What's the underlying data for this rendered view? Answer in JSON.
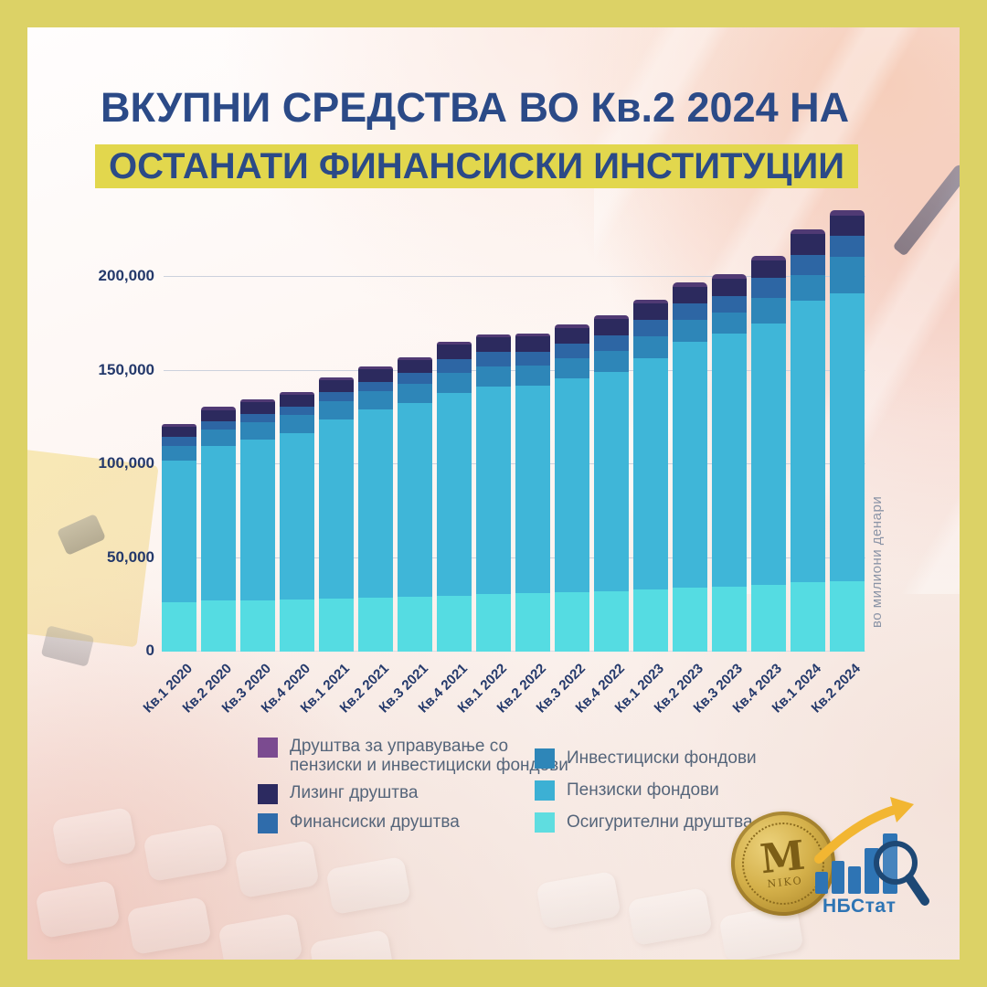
{
  "title": {
    "line1": "ВКУПНИ СРЕДСТВА ВО Кв.2 2024 НА",
    "line2": "ОСТАНАТИ ФИНАНСИСКИ ИНСТИТУЦИИ"
  },
  "axis": {
    "unit_label": "во милиони денари",
    "y_ticks": [
      {
        "label": "0",
        "value": 0
      },
      {
        "label": "50,000",
        "value": 50000
      },
      {
        "label": "100,000",
        "value": 100000
      },
      {
        "label": "150,000",
        "value": 150000
      },
      {
        "label": "200,000",
        "value": 200000
      }
    ]
  },
  "chart_data": {
    "type": "bar",
    "stacked": true,
    "title": "Вкупни средства во Кв.2 2024 на останати финансиски институции",
    "ylabel": "во милиони денари",
    "ylim": [
      0,
      240000
    ],
    "grid": true,
    "legend_position": "bottom",
    "categories": [
      "Кв.1 2020",
      "Кв.2 2020",
      "Кв.3 2020",
      "Кв.4 2020",
      "Кв.1 2021",
      "Кв.2 2021",
      "Кв.3 2021",
      "Кв.4 2021",
      "Кв.1 2022",
      "Кв.2 2022",
      "Кв.3 2022",
      "Кв.4 2022",
      "Кв.1 2023",
      "Кв.2 2023",
      "Кв.3 2023",
      "Кв.4 2023",
      "Кв.1 2024",
      "Кв.2 2024"
    ],
    "series": [
      {
        "name": "Осигурителни друштва",
        "color": "#55dce2",
        "legend_color": "#5fdde0",
        "values": [
          26200,
          27200,
          27500,
          28000,
          28500,
          29000,
          29500,
          30000,
          30500,
          31000,
          31500,
          32000,
          33000,
          34000,
          34500,
          35500,
          37000,
          37500
        ]
      },
      {
        "name": "Пензиски фондови",
        "color": "#3fb6d8",
        "legend_color": "#3cb0d4",
        "values": [
          75700,
          82500,
          85600,
          88500,
          95300,
          100100,
          103000,
          108300,
          110800,
          111200,
          114600,
          117500,
          123800,
          131500,
          135400,
          139600,
          150200,
          153900
        ]
      },
      {
        "name": "Инвестициски фондови",
        "color": "#2e86b8",
        "legend_color": "#2e86b8",
        "values": [
          7800,
          8700,
          9200,
          9700,
          9700,
          9700,
          10200,
          10700,
          10700,
          10700,
          10700,
          11200,
          11700,
          11700,
          11200,
          13700,
          13700,
          19400
        ]
      },
      {
        "name": "Финансиски друштва",
        "color": "#2d66a4",
        "legend_color": "#2f6cab",
        "values": [
          4900,
          4400,
          4400,
          4400,
          4900,
          5300,
          6300,
          7300,
          7800,
          7300,
          7800,
          8300,
          8700,
          8700,
          8700,
          10800,
          10800,
          11400
        ]
      },
      {
        "name": "Лизинг друштва",
        "color": "#2c2a5e",
        "legend_color": "#2c2a60",
        "values": [
          5300,
          5800,
          6300,
          6300,
          6500,
          6800,
          6800,
          7800,
          7800,
          8300,
          8300,
          8700,
          8700,
          8700,
          9200,
          9200,
          11400,
          10500
        ]
      },
      {
        "name": "Друштва за управување со\nпензиски и инвестициски фондови",
        "color": "#503a74",
        "legend_color": "#7b4b90",
        "values": [
          1500,
          1900,
          1500,
          1500,
          1500,
          1500,
          1500,
          1500,
          1900,
          1500,
          1900,
          1900,
          1900,
          2400,
          2400,
          2400,
          2400,
          3000
        ]
      }
    ]
  },
  "legend": {
    "column1": [
      {
        "label": "Друштва за управување со\nпензиски и инвестициски фондови",
        "color": "#7b4b90"
      },
      {
        "label": "Лизинг друштва",
        "color": "#2c2a60"
      },
      {
        "label": "Финансиски друштва",
        "color": "#2f6cab"
      }
    ],
    "column2": [
      {
        "label": "Инвестициски фондови",
        "color": "#2e86b8"
      },
      {
        "label": "Пензиски фондови",
        "color": "#3cb0d4"
      },
      {
        "label": "Осигурителни друштва",
        "color": "#5fdde0"
      }
    ]
  },
  "logos": {
    "nbstat_label": "НБСтат",
    "coin_monogram": "M",
    "coin_inscription": "ΝΙΚΟ"
  },
  "colors": {
    "frame": "#dcd266",
    "title_text": "#2b4a87",
    "title_highlight": "#e2d74d",
    "axis_text": "#24396b",
    "gridline": "#ccd1dd",
    "legend_text": "#55657a",
    "unit_text": "#8b94a6",
    "nbstat_blue": "#2e74b4",
    "nbstat_gold": "#f2b632"
  }
}
